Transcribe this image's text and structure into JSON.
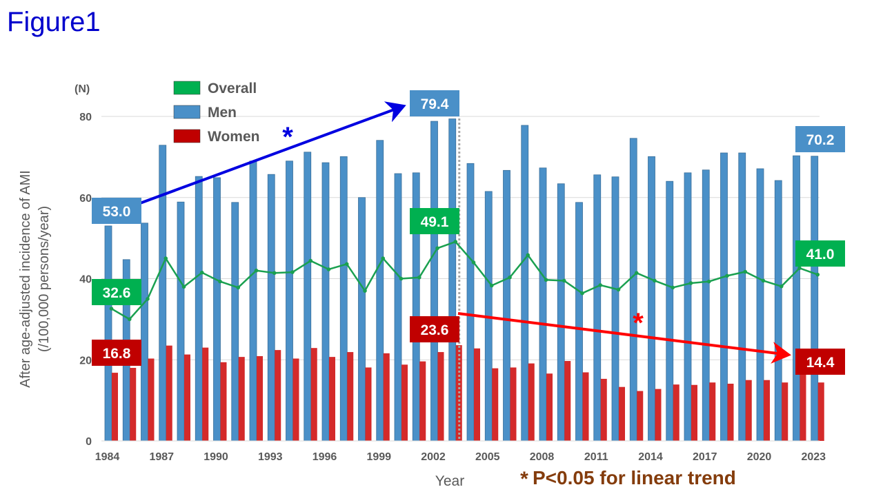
{
  "figure_label": "Figure1",
  "chart_data": {
    "type": "bar",
    "ylabel_line1": "After age-adjusted incidence of AMI",
    "ylabel_line2": "(/100,000 persons/year)",
    "xlabel": "Year",
    "unit_label": "(N)",
    "ylim": [
      0,
      80
    ],
    "yticks": [
      0,
      20,
      40,
      60,
      80
    ],
    "grid": true,
    "legend_placement": "top-left",
    "xtick_labels": [
      "1984",
      "1987",
      "1990",
      "1993",
      "1996",
      "1999",
      "2002",
      "2005",
      "2008",
      "2011",
      "2014",
      "2017",
      "2020",
      "2023"
    ],
    "categories": [
      1984,
      1985,
      1986,
      1987,
      1988,
      1989,
      1990,
      1991,
      1992,
      1993,
      1994,
      1995,
      1996,
      1997,
      1998,
      1999,
      2000,
      2001,
      2002,
      2003,
      2004,
      2005,
      2006,
      2007,
      2008,
      2009,
      2010,
      2011,
      2012,
      2013,
      2014,
      2015,
      2016,
      2017,
      2018,
      2019,
      2020,
      2021,
      2022,
      2023
    ],
    "series": [
      {
        "name": "Overall",
        "type": "line",
        "color": "#1aa050",
        "values": [
          32.6,
          30.0,
          35.0,
          45.0,
          38.0,
          41.5,
          39.3,
          37.8,
          42.0,
          41.4,
          41.6,
          44.4,
          42.3,
          43.6,
          37.0,
          45.0,
          40.0,
          40.3,
          47.5,
          49.1,
          44.0,
          38.3,
          40.3,
          45.8,
          39.7,
          39.5,
          36.4,
          38.4,
          37.3,
          41.4,
          39.5,
          37.8,
          38.9,
          39.3,
          40.7,
          41.7,
          39.5,
          38.1,
          42.6,
          41.0
        ]
      },
      {
        "name": "Men",
        "type": "bar",
        "color": "#4a90c8",
        "values": [
          53.0,
          44.7,
          53.7,
          72.9,
          58.9,
          65.2,
          64.9,
          58.8,
          69.0,
          65.7,
          69.0,
          71.2,
          68.6,
          70.1,
          60.0,
          74.1,
          65.9,
          66.1,
          78.8,
          79.4,
          68.4,
          61.5,
          66.7,
          77.8,
          67.3,
          63.4,
          58.8,
          65.6,
          65.1,
          74.6,
          70.1,
          64.0,
          66.1,
          66.8,
          71.0,
          71.0,
          67.1,
          64.2,
          70.3,
          70.2
        ]
      },
      {
        "name": "Women",
        "type": "bar",
        "color": "#d42a2a",
        "values": [
          16.8,
          18.0,
          20.3,
          23.5,
          21.3,
          23.0,
          19.4,
          20.7,
          20.9,
          22.4,
          20.3,
          22.9,
          20.7,
          21.9,
          18.1,
          21.6,
          18.8,
          19.6,
          21.9,
          23.6,
          22.8,
          17.9,
          18.1,
          19.1,
          16.6,
          19.7,
          16.9,
          15.3,
          13.3,
          12.3,
          12.8,
          13.9,
          13.8,
          14.4,
          14.1,
          15.0,
          15.0,
          14.4,
          16.6,
          14.4
        ]
      }
    ],
    "legend_colors": {
      "Overall": "#00b050",
      "Men": "#4a90c8",
      "Women": "#c00000"
    },
    "annotations": [
      {
        "text": "53.0",
        "series": "Men",
        "year": 1984,
        "color": "#4a90c8"
      },
      {
        "text": "79.4",
        "series": "Men",
        "year": 2003,
        "color": "#4a90c8"
      },
      {
        "text": "70.2",
        "series": "Men",
        "year": 2023,
        "color": "#4a90c8"
      },
      {
        "text": "32.6",
        "series": "Overall",
        "year": 1984,
        "color": "#00b050"
      },
      {
        "text": "49.1",
        "series": "Overall",
        "year": 2003,
        "color": "#00b050"
      },
      {
        "text": "41.0",
        "series": "Overall",
        "year": 2023,
        "color": "#00b050"
      },
      {
        "text": "16.8",
        "series": "Women",
        "year": 1984,
        "color": "#c00000"
      },
      {
        "text": "23.6",
        "series": "Women",
        "year": 2003,
        "color": "#c00000"
      },
      {
        "text": "14.4",
        "series": "Women",
        "year": 2023,
        "color": "#c00000"
      }
    ],
    "trend_arrows": [
      {
        "series": "Men",
        "from": 1984,
        "to": 2003,
        "color": "#0000e0",
        "marker": "*"
      },
      {
        "series": "Women",
        "from": 2003,
        "to": 2023,
        "color": "#ff0000",
        "marker": "*"
      }
    ],
    "breakpoint_year": 2003,
    "footnote_marker": "*",
    "footnote": "P<0.05 for linear trend",
    "footnote_color": "#843c0c"
  }
}
